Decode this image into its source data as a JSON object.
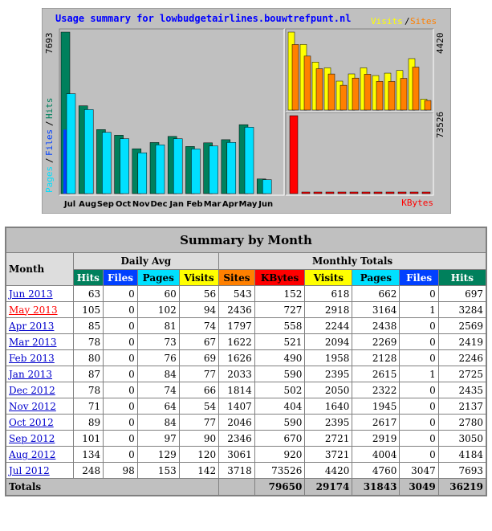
{
  "chart_data": {
    "type": "bar",
    "title": "Usage summary for lowbudgetairlines.bouwtrefpunt.nl",
    "legend": {
      "visits": "Visits",
      "sep": "/",
      "sites": "Sites",
      "kbytes": "KBytes",
      "left": [
        "Pages",
        "/",
        "Files",
        "/",
        "Hits"
      ]
    },
    "max_labels": {
      "hits": "7693",
      "visits": "4420",
      "kbytes": "73526"
    },
    "categories": [
      "Jul",
      "Aug",
      "Sep",
      "Oct",
      "Nov",
      "Dec",
      "Jan",
      "Feb",
      "Mar",
      "Apr",
      "May",
      "Jun"
    ],
    "daily": {
      "hits": [
        7693,
        4184,
        3050,
        2780,
        2137,
        2435,
        2725,
        2246,
        2419,
        2569,
        3284,
        697
      ],
      "files": [
        3047,
        0,
        0,
        0,
        0,
        0,
        1,
        0,
        0,
        0,
        1,
        0
      ],
      "pages": [
        4760,
        4004,
        2919,
        2617,
        1945,
        2322,
        2615,
        2128,
        2269,
        2438,
        3164,
        662
      ]
    },
    "series": [
      {
        "name": "Hits",
        "values": [
          7693,
          4184,
          3050,
          2780,
          2137,
          2435,
          2725,
          2246,
          2419,
          2569,
          3284,
          697
        ]
      },
      {
        "name": "Files",
        "values": [
          3047,
          0,
          0,
          0,
          0,
          0,
          1,
          0,
          0,
          0,
          1,
          0
        ]
      },
      {
        "name": "Pages",
        "values": [
          4760,
          4004,
          2919,
          2617,
          1945,
          2322,
          2615,
          2128,
          2269,
          2438,
          3164,
          662
        ]
      },
      {
        "name": "Visits",
        "values": [
          4420,
          3721,
          2721,
          2395,
          1640,
          2050,
          2395,
          1958,
          2094,
          2244,
          2918,
          618
        ]
      },
      {
        "name": "Sites",
        "values": [
          3718,
          3061,
          2346,
          2046,
          1407,
          1814,
          2033,
          1626,
          1622,
          1797,
          2436,
          543
        ]
      },
      {
        "name": "KBytes",
        "values": [
          73526,
          920,
          670,
          590,
          404,
          502,
          590,
          490,
          521,
          558,
          727,
          152
        ]
      }
    ],
    "colors": {
      "hits": "#00805c",
      "files": "#0040ff",
      "pages": "#00e0ff",
      "visits": "#ffff00",
      "sites": "#ff8000",
      "kbytes": "#ff0000",
      "panel": "#c0c0c0",
      "title": "#0000ff"
    }
  },
  "table": {
    "title": "Summary by Month",
    "month_header": "Month",
    "daily_avg_header": "Daily Avg",
    "monthly_totals_header": "Monthly Totals",
    "daily_cols": [
      {
        "label": "Hits",
        "bg": "#00805c",
        "fg": "#ffffff"
      },
      {
        "label": "Files",
        "bg": "#0040ff",
        "fg": "#ffffff"
      },
      {
        "label": "Pages",
        "bg": "#00e0ff",
        "fg": "#000000"
      },
      {
        "label": "Visits",
        "bg": "#ffff00",
        "fg": "#000000"
      }
    ],
    "total_cols": [
      {
        "label": "Sites",
        "bg": "#ff8000",
        "fg": "#000000"
      },
      {
        "label": "KBytes",
        "bg": "#ff0000",
        "fg": "#000000"
      },
      {
        "label": "Visits",
        "bg": "#ffff00",
        "fg": "#000000"
      },
      {
        "label": "Pages",
        "bg": "#00e0ff",
        "fg": "#000000"
      },
      {
        "label": "Files",
        "bg": "#0040ff",
        "fg": "#ffffff"
      },
      {
        "label": "Hits",
        "bg": "#00805c",
        "fg": "#ffffff"
      }
    ],
    "rows": [
      {
        "month": "Jun 2013",
        "current": false,
        "daily": [
          63,
          0,
          60,
          56
        ],
        "totals": [
          543,
          152,
          618,
          662,
          0,
          697
        ]
      },
      {
        "month": "May 2013",
        "current": true,
        "daily": [
          105,
          0,
          102,
          94
        ],
        "totals": [
          2436,
          727,
          2918,
          3164,
          1,
          3284
        ]
      },
      {
        "month": "Apr 2013",
        "current": false,
        "daily": [
          85,
          0,
          81,
          74
        ],
        "totals": [
          1797,
          558,
          2244,
          2438,
          0,
          2569
        ]
      },
      {
        "month": "Mar 2013",
        "current": false,
        "daily": [
          78,
          0,
          73,
          67
        ],
        "totals": [
          1622,
          521,
          2094,
          2269,
          0,
          2419
        ]
      },
      {
        "month": "Feb 2013",
        "current": false,
        "daily": [
          80,
          0,
          76,
          69
        ],
        "totals": [
          1626,
          490,
          1958,
          2128,
          0,
          2246
        ]
      },
      {
        "month": "Jan 2013",
        "current": false,
        "daily": [
          87,
          0,
          84,
          77
        ],
        "totals": [
          2033,
          590,
          2395,
          2615,
          1,
          2725
        ]
      },
      {
        "month": "Dec 2012",
        "current": false,
        "daily": [
          78,
          0,
          74,
          66
        ],
        "totals": [
          1814,
          502,
          2050,
          2322,
          0,
          2435
        ]
      },
      {
        "month": "Nov 2012",
        "current": false,
        "daily": [
          71,
          0,
          64,
          54
        ],
        "totals": [
          1407,
          404,
          1640,
          1945,
          0,
          2137
        ]
      },
      {
        "month": "Oct 2012",
        "current": false,
        "daily": [
          89,
          0,
          84,
          77
        ],
        "totals": [
          2046,
          590,
          2395,
          2617,
          0,
          2780
        ]
      },
      {
        "month": "Sep 2012",
        "current": false,
        "daily": [
          101,
          0,
          97,
          90
        ],
        "totals": [
          2346,
          670,
          2721,
          2919,
          0,
          3050
        ]
      },
      {
        "month": "Aug 2012",
        "current": false,
        "daily": [
          134,
          0,
          129,
          120
        ],
        "totals": [
          3061,
          920,
          3721,
          4004,
          0,
          4184
        ]
      },
      {
        "month": "Jul 2012",
        "current": false,
        "daily": [
          248,
          98,
          153,
          142
        ],
        "totals": [
          3718,
          73526,
          4420,
          4760,
          3047,
          7693
        ]
      }
    ],
    "totals_label": "Totals",
    "totals": [
      "79650",
      "29174",
      "31843",
      "3049",
      "36219"
    ]
  }
}
